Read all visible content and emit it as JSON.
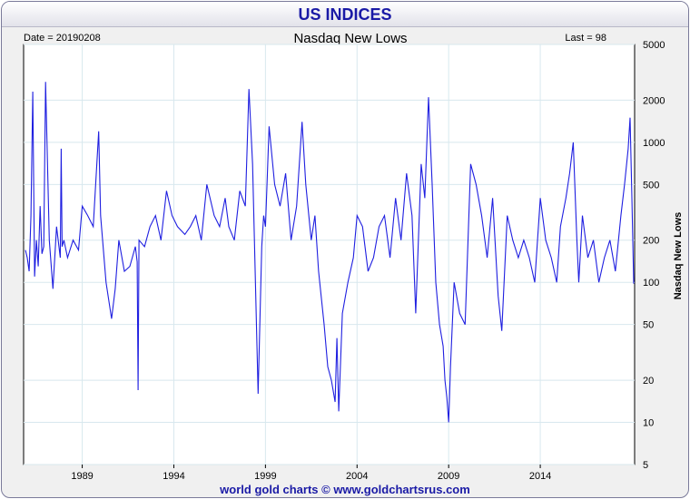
{
  "header": {
    "title": "US INDICES"
  },
  "footer": {
    "credit": "world gold charts © www.goldchartsrus.com"
  },
  "colors": {
    "series": "#1f1fe0",
    "title": "#1a1aa6",
    "grid": "#d8e8ee"
  },
  "chart_data": {
    "type": "line",
    "title": "Nasdaq New Lows",
    "date_label": "Date = 20190208",
    "last_label": "Last = 98",
    "ylabel": "Nasdaq New Lows",
    "xlabel": "",
    "y_scale": "log",
    "ylim": [
      5,
      5000
    ],
    "y_ticks": [
      5,
      10,
      20,
      50,
      100,
      200,
      500,
      1000,
      2000,
      5000
    ],
    "xlim": [
      1985.8,
      2019.15
    ],
    "x_ticks": [
      1989,
      1994,
      1999,
      2004,
      2009,
      2014
    ],
    "grid": true,
    "series": [
      {
        "name": "Nasdaq New Lows",
        "x": [
          1985.9,
          1986.0,
          1986.1,
          1986.2,
          1986.3,
          1986.4,
          1986.5,
          1986.6,
          1986.7,
          1986.8,
          1986.9,
          1987.0,
          1987.2,
          1987.4,
          1987.6,
          1987.8,
          1987.85,
          1987.9,
          1988.0,
          1988.2,
          1988.5,
          1988.8,
          1989.0,
          1989.3,
          1989.6,
          1989.9,
          1990.0,
          1990.3,
          1990.6,
          1990.8,
          1991.0,
          1991.3,
          1991.6,
          1991.9,
          1992.0,
          1992.05,
          1992.1,
          1992.4,
          1992.7,
          1993.0,
          1993.3,
          1993.6,
          1993.9,
          1994.2,
          1994.6,
          1994.9,
          1995.2,
          1995.5,
          1995.8,
          1996.2,
          1996.5,
          1996.8,
          1997.0,
          1997.3,
          1997.6,
          1997.9,
          1998.1,
          1998.3,
          1998.6,
          1998.8,
          1998.9,
          1999.0,
          1999.2,
          1999.5,
          1999.8,
          2000.1,
          2000.4,
          2000.7,
          2001.0,
          2001.2,
          2001.5,
          2001.7,
          2001.9,
          2002.2,
          2002.4,
          2002.6,
          2002.8,
          2002.9,
          2003.0,
          2003.2,
          2003.5,
          2003.8,
          2004.0,
          2004.3,
          2004.6,
          2004.9,
          2005.2,
          2005.5,
          2005.8,
          2006.1,
          2006.4,
          2006.7,
          2007.0,
          2007.2,
          2007.5,
          2007.7,
          2007.9,
          2008.1,
          2008.3,
          2008.5,
          2008.7,
          2008.8,
          2008.9,
          2009.0,
          2009.1,
          2009.3,
          2009.6,
          2009.9,
          2010.2,
          2010.5,
          2010.8,
          2011.1,
          2011.4,
          2011.7,
          2011.9,
          2012.2,
          2012.5,
          2012.8,
          2013.1,
          2013.4,
          2013.7,
          2014.0,
          2014.3,
          2014.6,
          2014.9,
          2015.1,
          2015.4,
          2015.6,
          2015.8,
          2016.0,
          2016.1,
          2016.3,
          2016.6,
          2016.9,
          2017.2,
          2017.5,
          2017.8,
          2018.1,
          2018.4,
          2018.6,
          2018.8,
          2018.9,
          2019.0,
          2019.1
        ],
        "y": [
          170,
          150,
          120,
          300,
          2300,
          110,
          200,
          130,
          350,
          160,
          180,
          2700,
          200,
          90,
          250,
          150,
          900,
          180,
          200,
          150,
          200,
          170,
          350,
          300,
          250,
          1200,
          300,
          100,
          55,
          90,
          200,
          120,
          130,
          180,
          140,
          17,
          200,
          180,
          250,
          300,
          200,
          450,
          300,
          250,
          220,
          250,
          300,
          200,
          500,
          300,
          250,
          400,
          250,
          200,
          450,
          350,
          2400,
          700,
          16,
          180,
          300,
          250,
          1300,
          500,
          350,
          600,
          200,
          350,
          1400,
          500,
          200,
          300,
          120,
          50,
          25,
          20,
          14,
          40,
          12,
          60,
          100,
          150,
          300,
          250,
          120,
          150,
          250,
          300,
          150,
          400,
          200,
          600,
          300,
          60,
          700,
          400,
          2100,
          500,
          100,
          50,
          35,
          20,
          15,
          10,
          25,
          100,
          60,
          50,
          700,
          500,
          300,
          150,
          400,
          80,
          45,
          300,
          200,
          150,
          200,
          150,
          100,
          400,
          200,
          150,
          100,
          250,
          400,
          600,
          1000,
          200,
          100,
          300,
          150,
          200,
          100,
          150,
          200,
          120,
          300,
          500,
          900,
          1500,
          400,
          98
        ]
      }
    ]
  }
}
